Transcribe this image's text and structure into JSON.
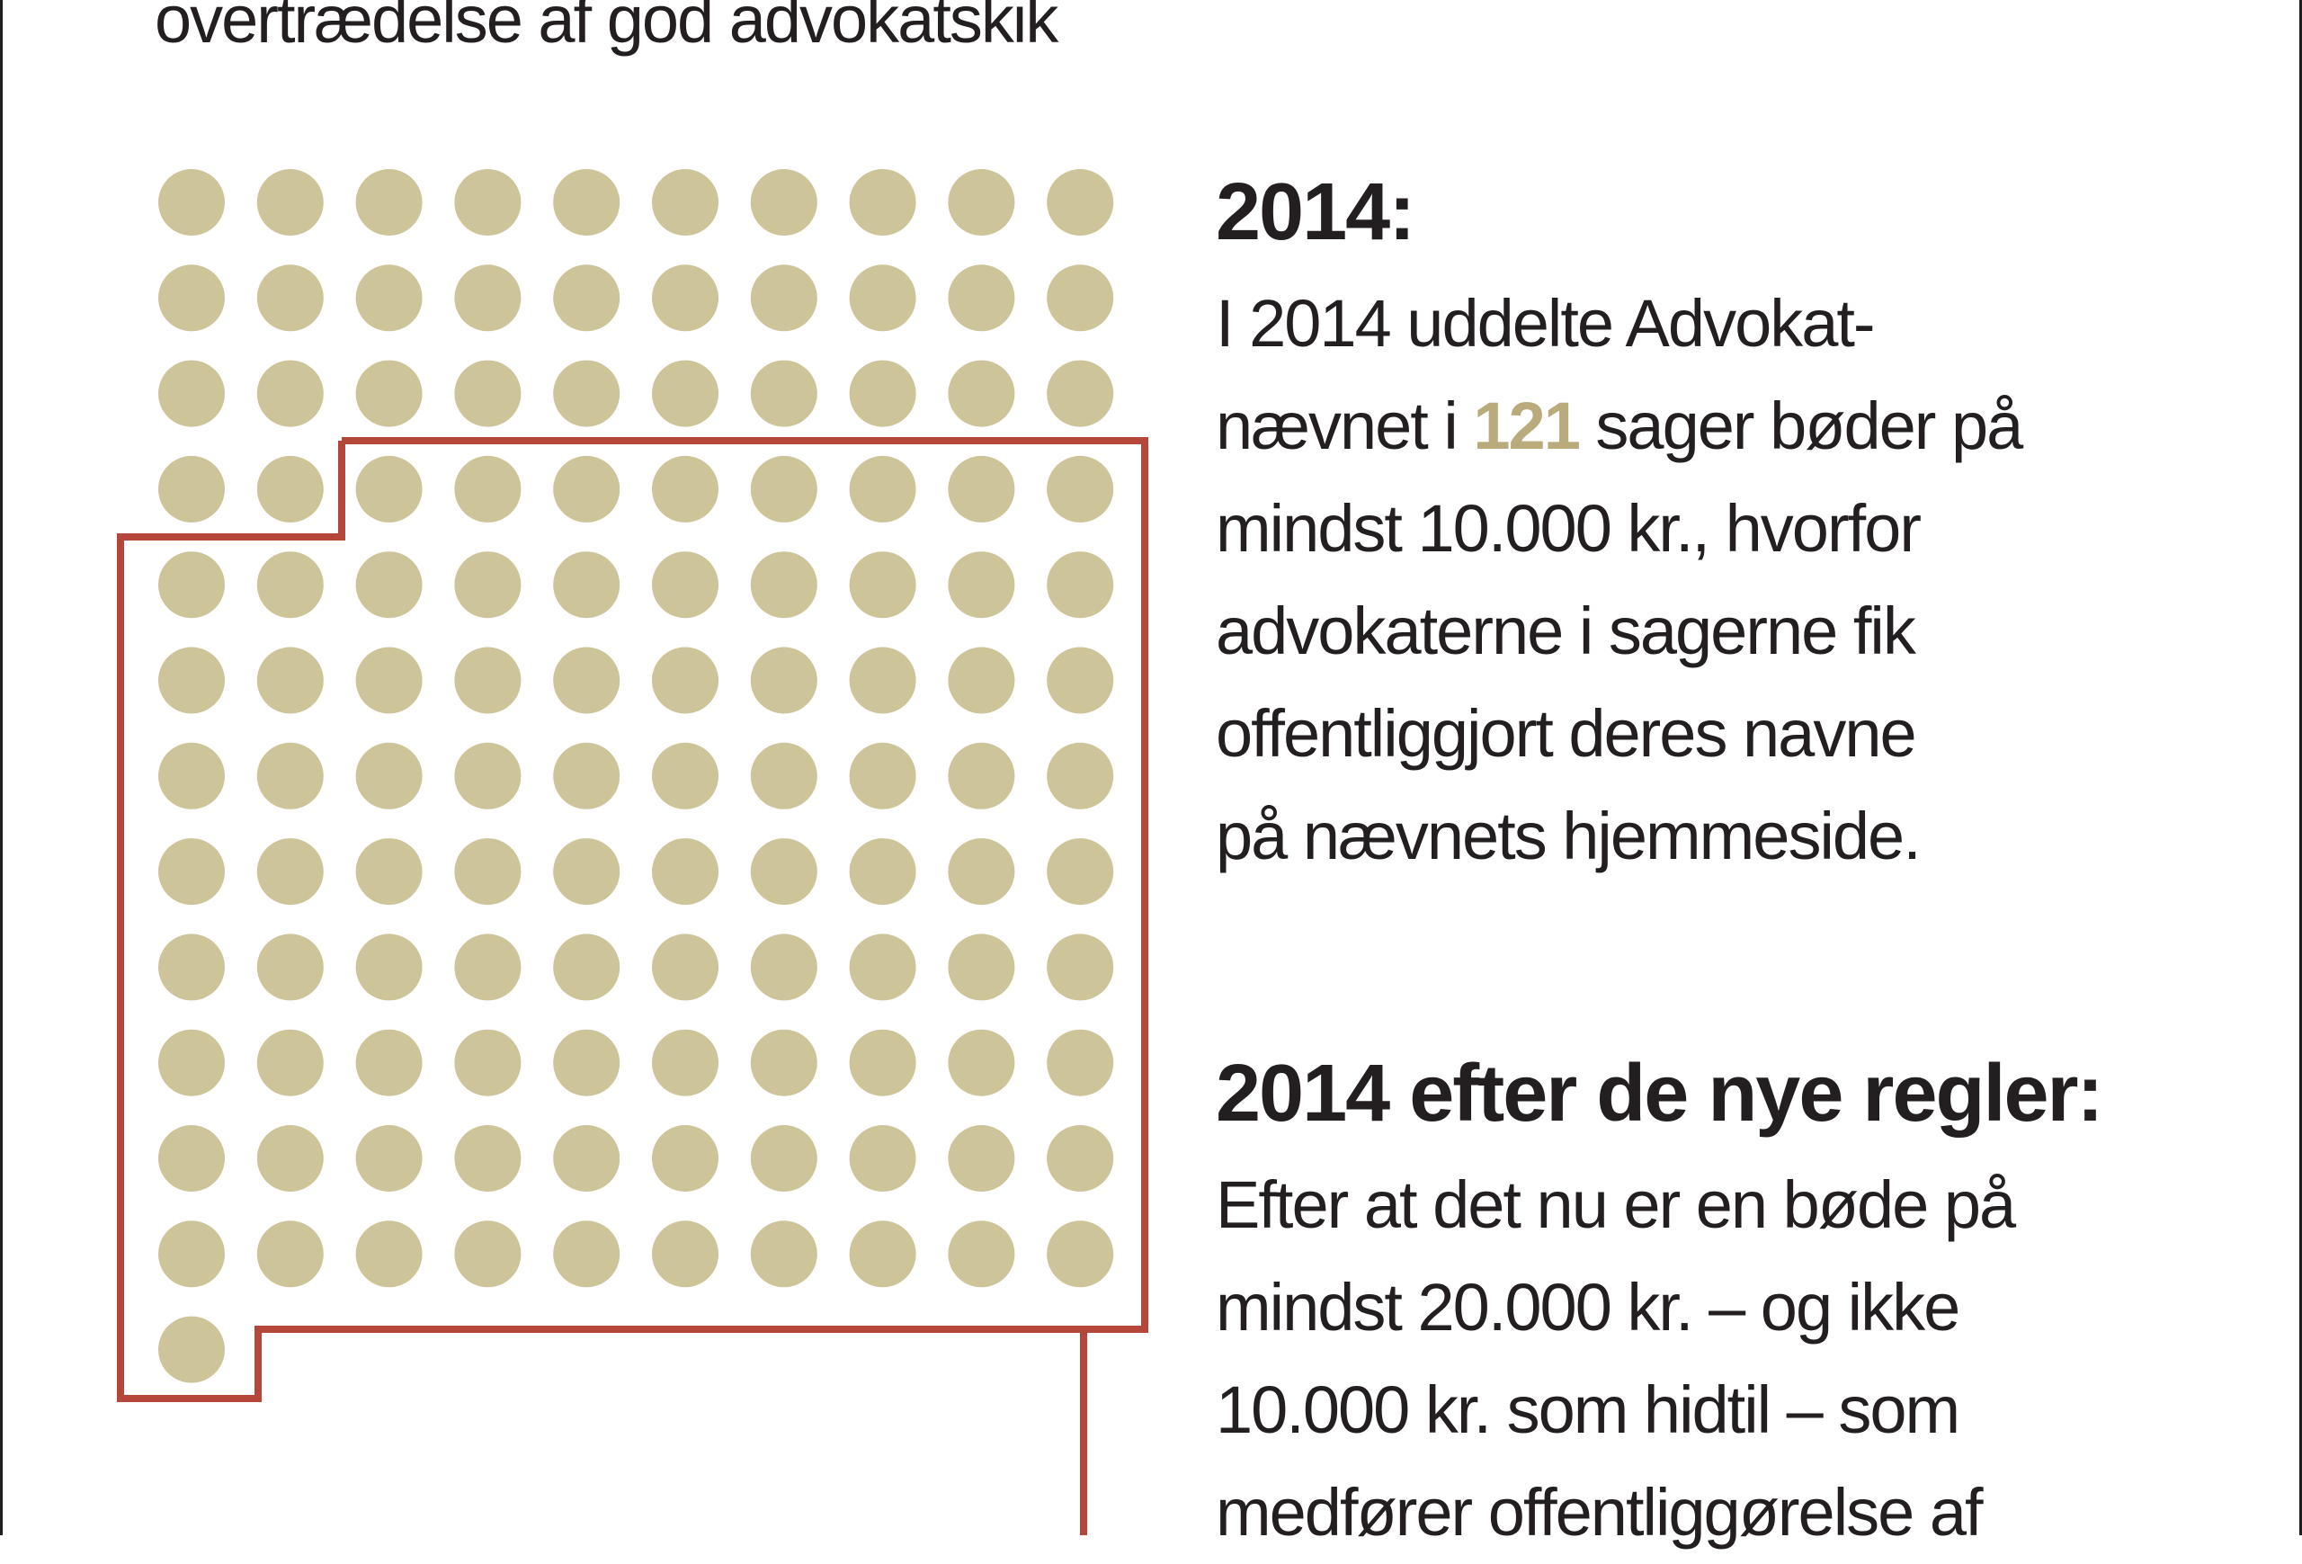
{
  "subtitle": "overtrædelse af god advokatskik",
  "colors": {
    "dot": "#cdc49a",
    "outline": "#b5473a",
    "highlight": "#b9ab7b",
    "text": "#231f20"
  },
  "dot_grid": {
    "rows": 13,
    "cols": 10,
    "total_dots": 121,
    "highlighted_dots": 81
  },
  "section_2014": {
    "heading": "2014:",
    "lines": {
      "l1": "I 2014 uddelte Advokat-",
      "l2_before": "nævnet i ",
      "l2_number": "121",
      "l2_after": " sager bøder på",
      "l3": "mindst 10.000 kr., hvorfor",
      "l4": "advokaterne i sagerne fik",
      "l5": "offentliggjort deres navne",
      "l6": "på nævnets hjemmeside."
    }
  },
  "section_new_rules": {
    "heading": "2014 efter de nye regler:",
    "lines": {
      "l1": "Efter at det nu er en bøde på",
      "l2": "mindst 20.000 kr. – og ikke",
      "l3": "10.000 kr. som hidtil – som",
      "l4": "medfører offentliggørelse af"
    }
  }
}
